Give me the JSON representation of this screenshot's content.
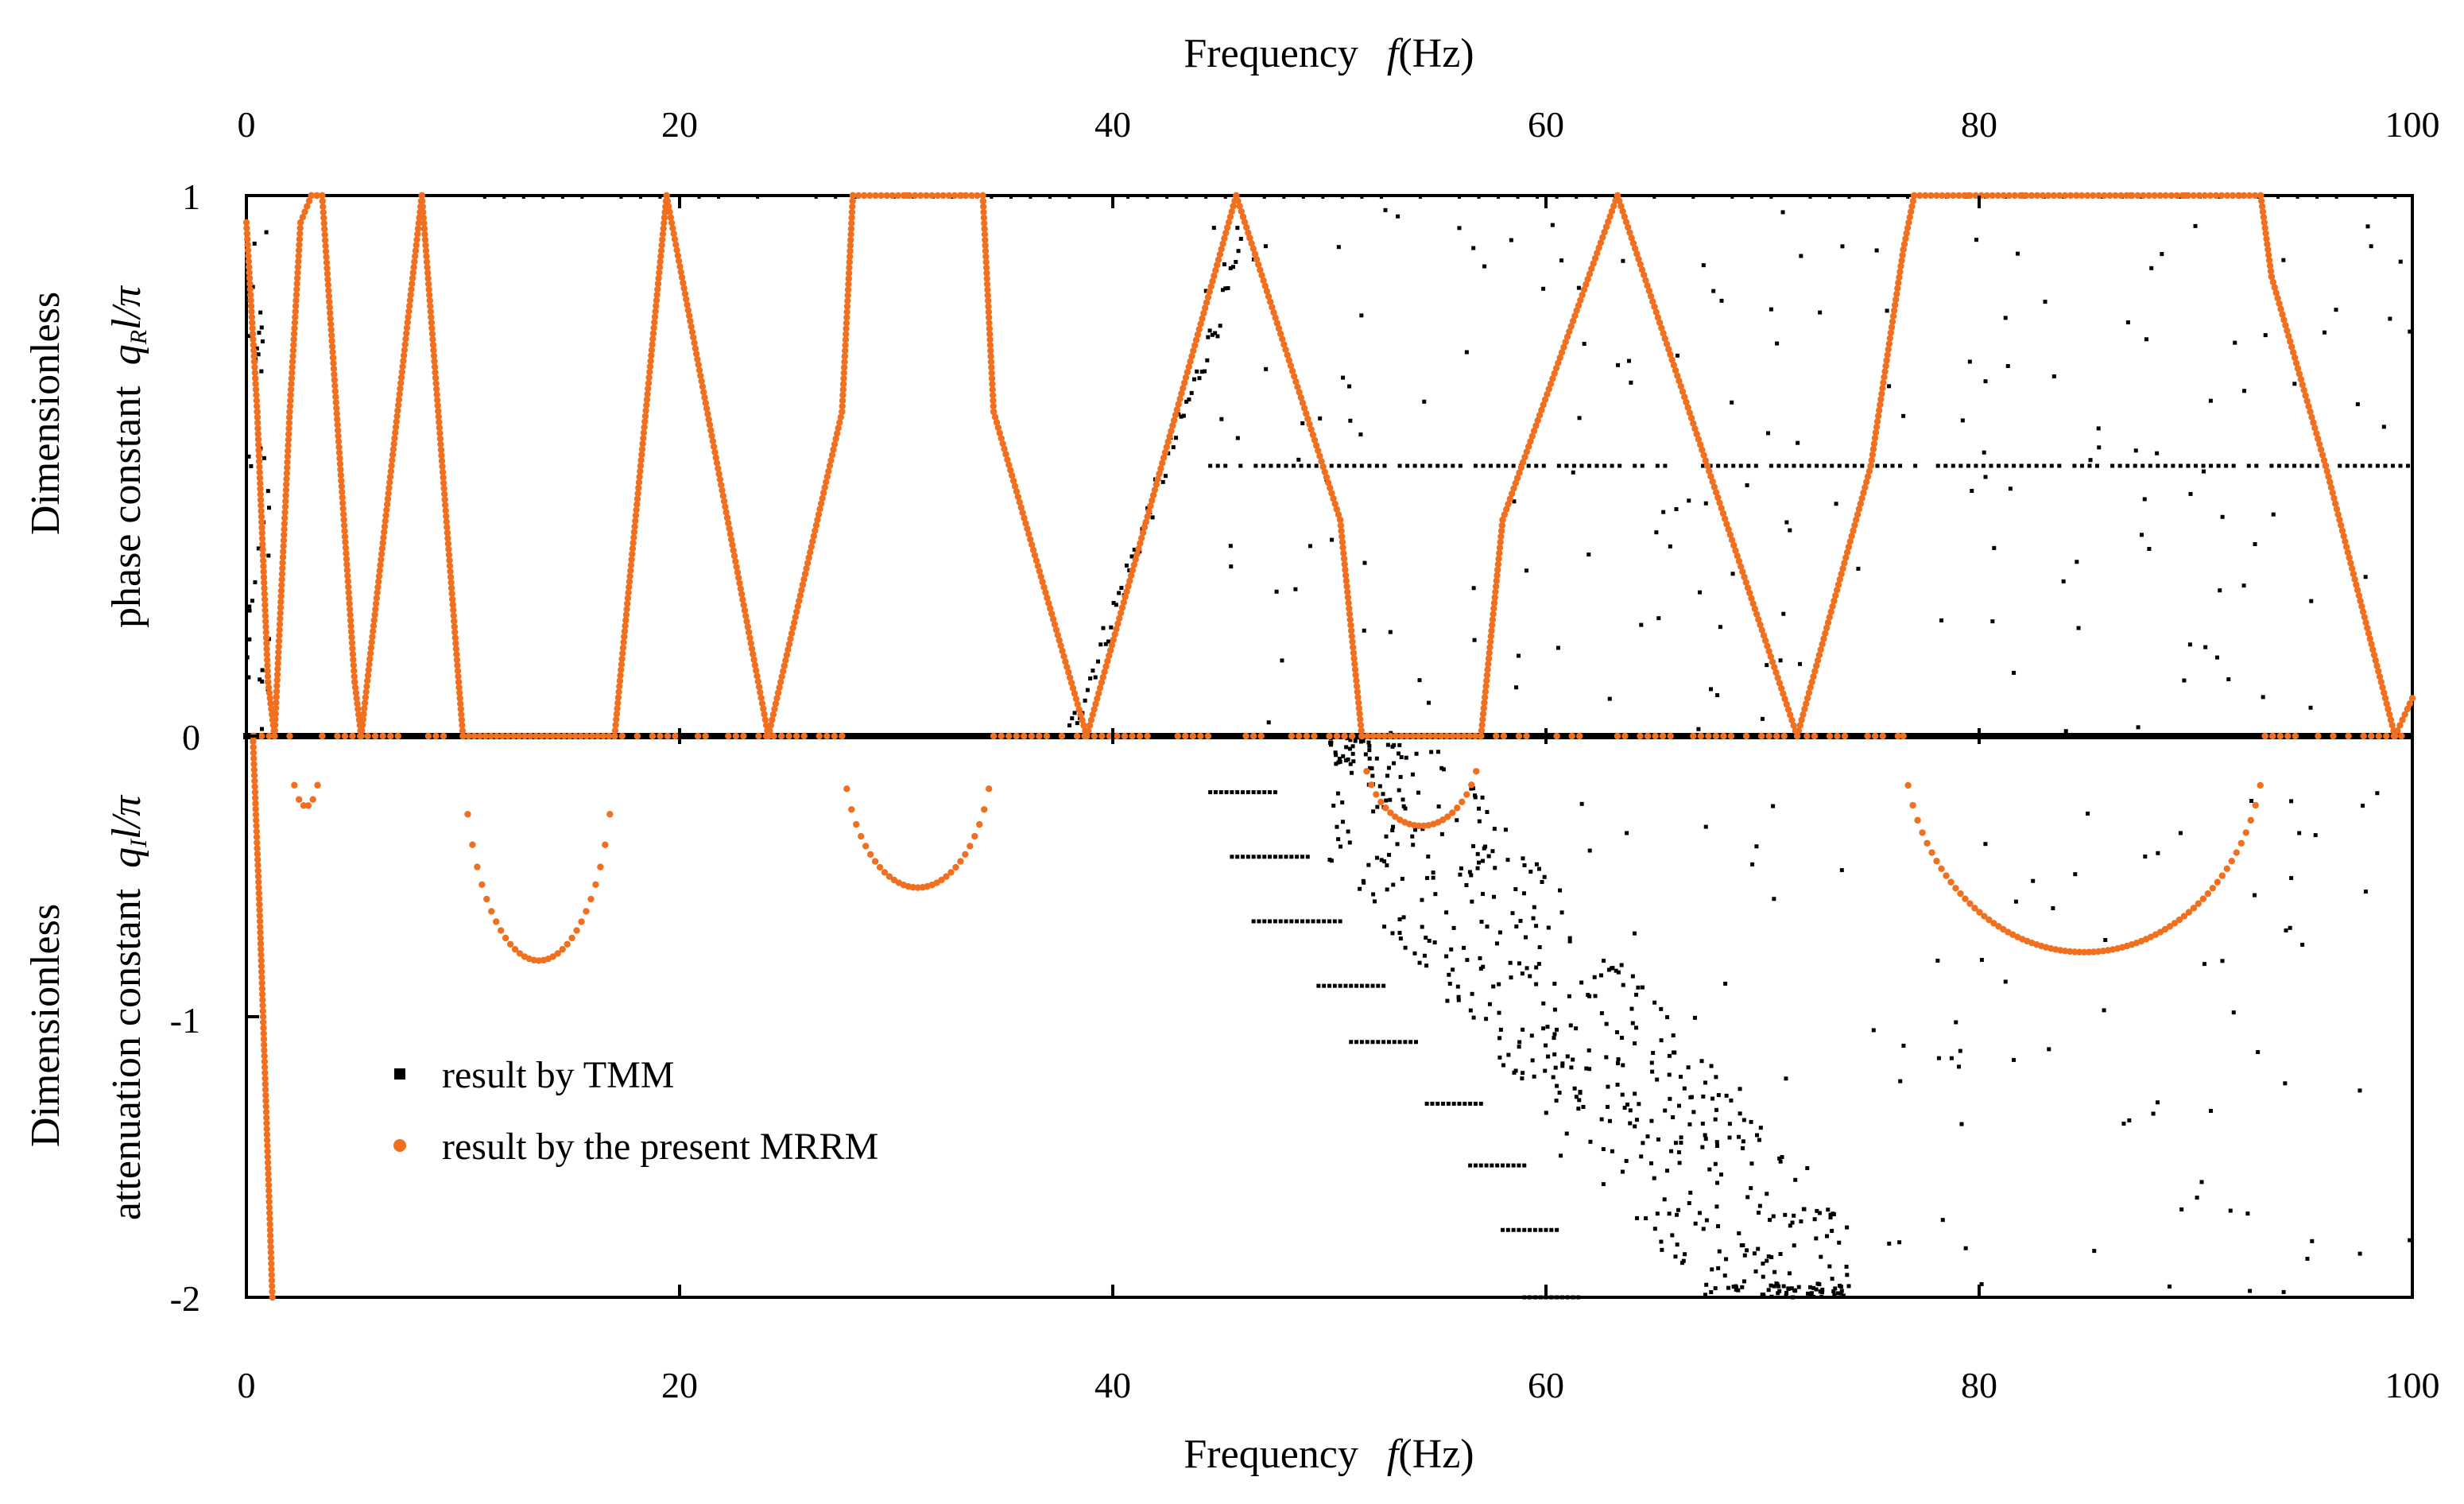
{
  "chart_data": {
    "type": "scatter",
    "top_xlabel": "Frequency",
    "top_xlabel_var": "f",
    "top_xlabel_unit": "(Hz)",
    "xlabel": "Frequency",
    "xlabel_var": "f",
    "xlabel_unit": "(Hz)",
    "xlim": [
      0,
      100
    ],
    "x_ticks": [
      "0",
      "20",
      "40",
      "60",
      "80",
      "100"
    ],
    "ylim": [
      -2,
      1
    ],
    "y_ticks": [
      "1",
      "0",
      "-1",
      "-2"
    ],
    "upper_ylabel_line1": "Dimensionless",
    "upper_ylabel_line2": "phase constant",
    "upper_ylabel_symbol": "q",
    "upper_ylabel_sub": "R",
    "upper_ylabel_rest": "l/π",
    "lower_ylabel_line1": "Dimensionless",
    "lower_ylabel_line2": "attenuation constant",
    "lower_ylabel_symbol": "q",
    "lower_ylabel_sub": "I",
    "lower_ylabel_rest": "l/π",
    "legend": [
      {
        "label": "result by TMM",
        "marker": "square",
        "color": "#000000"
      },
      {
        "label": "result by the present MRRM",
        "marker": "circle",
        "color": "#f07020"
      }
    ],
    "series": [
      {
        "name": "result by the present MRRM",
        "color": "#f07020",
        "phase_curve": [
          [
            0,
            0.95
          ],
          [
            0.5,
            0.6
          ],
          [
            1,
            0.1
          ],
          [
            1.3,
            0
          ],
          [
            2,
            0.6
          ],
          [
            2.5,
            0.95
          ],
          [
            3,
            1
          ],
          [
            3.5,
            1
          ],
          [
            4,
            0.7
          ],
          [
            5,
            0.1
          ],
          [
            5.3,
            0
          ],
          [
            8.1,
            1
          ],
          [
            9.8,
            0.1
          ],
          [
            10,
            0
          ],
          [
            17,
            0
          ],
          [
            19.4,
            1
          ],
          [
            24.1,
            0
          ],
          [
            27.5,
            0.6
          ],
          [
            28,
            1
          ],
          [
            34,
            1
          ],
          [
            34.5,
            0.6
          ],
          [
            38.8,
            0
          ],
          [
            45.7,
            1
          ],
          [
            50.5,
            0.4
          ],
          [
            51.5,
            0
          ],
          [
            57,
            0
          ],
          [
            58,
            0.4
          ],
          [
            63.3,
            1
          ],
          [
            71.6,
            0
          ],
          [
            75,
            0.5
          ],
          [
            76.5,
            0.9
          ],
          [
            77,
            1
          ],
          [
            93,
            1
          ],
          [
            93.5,
            0.85
          ],
          [
            96,
            0.5
          ],
          [
            99.2,
            0
          ],
          [
            100,
            0.07
          ]
        ],
        "attenuation_curve": [
          [
            0,
            0
          ],
          [
            0.5,
            -1
          ],
          [
            1,
            -2
          ],
          [
            2,
            0
          ],
          [
            2.8,
            -0.25
          ],
          [
            3.5,
            0
          ],
          [
            10,
            0
          ],
          [
            13.3,
            -0.8
          ],
          [
            17,
            0
          ],
          [
            27.5,
            0
          ],
          [
            31,
            -0.54
          ],
          [
            34.5,
            0
          ],
          [
            51.5,
            0
          ],
          [
            54.3,
            -0.32
          ],
          [
            57,
            0
          ],
          [
            76.5,
            0
          ],
          [
            85,
            -0.77
          ],
          [
            93.2,
            0
          ]
        ]
      },
      {
        "name": "result by TMM",
        "color": "#000000",
        "phase_baseline": 0,
        "phase_plateau": {
          "x": [
            44.5,
            100
          ],
          "y": 0.5
        },
        "phase_top_band": {
          "x": [
            11,
            100
          ],
          "y": 1
        },
        "attenuation_steps": [
          {
            "x": [
              44.5,
              47.5
            ],
            "y": -0.2
          },
          {
            "x": [
              45.5,
              49
            ],
            "y": -0.43
          },
          {
            "x": [
              46.5,
              50.5
            ],
            "y": -0.66
          },
          {
            "x": [
              49.5,
              52.5
            ],
            "y": -0.89
          },
          {
            "x": [
              51,
              54
            ],
            "y": -1.09
          },
          {
            "x": [
              54.5,
              57
            ],
            "y": -1.31
          },
          {
            "x": [
              56.5,
              59
            ],
            "y": -1.53
          },
          {
            "x": [
              58,
              60.5
            ],
            "y": -1.76
          },
          {
            "x": [
              59,
              61.5
            ],
            "y": -2
          }
        ],
        "scatter_region": {
          "x": [
            44,
            100
          ],
          "y": [
            -2,
            1
          ]
        }
      }
    ]
  }
}
